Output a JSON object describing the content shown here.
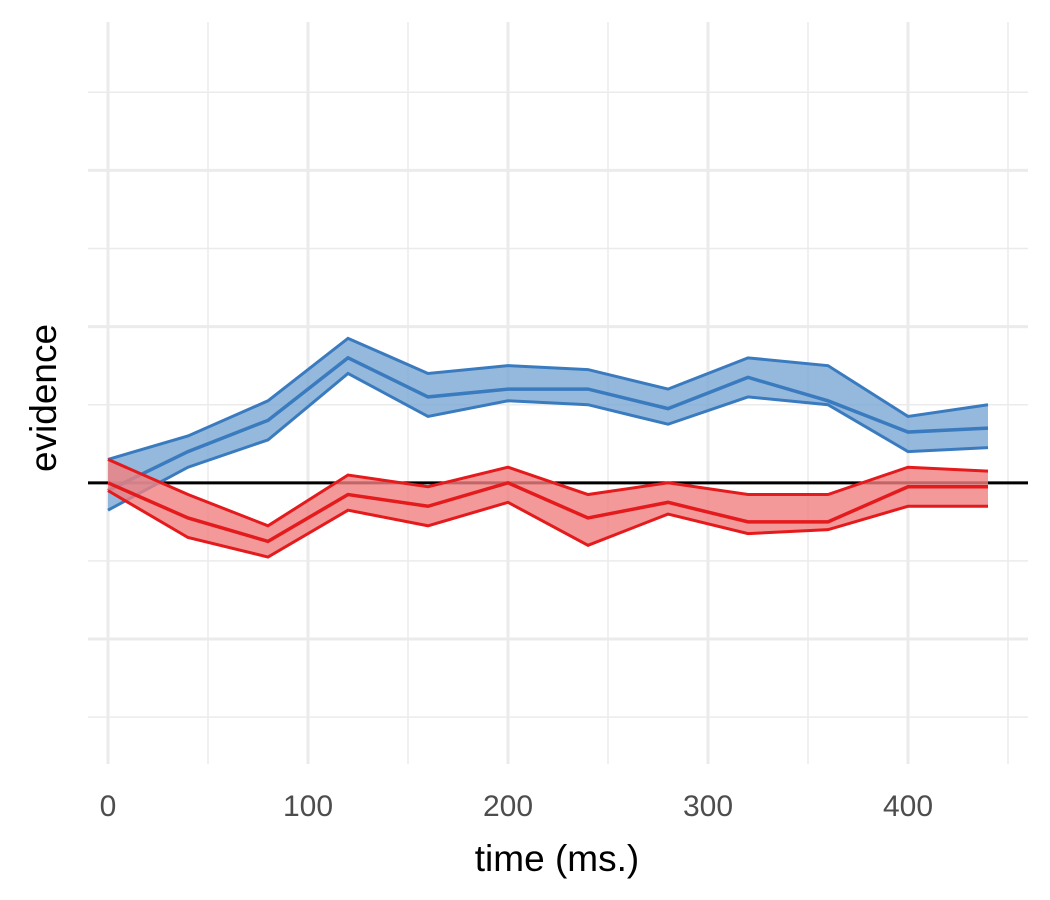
{
  "chart_data": {
    "type": "line",
    "xlabel": "time (ms.)",
    "ylabel": "evidence",
    "xlim": [
      -10,
      460
    ],
    "ylim": [
      -3.6,
      5.9
    ],
    "x_ticks": [
      0,
      100,
      200,
      300,
      400
    ],
    "y_ticks_labeled": false,
    "reference_line_y": 0,
    "grid": true,
    "legend": "none",
    "x": [
      0,
      40,
      80,
      120,
      160,
      200,
      240,
      280,
      320,
      360,
      400,
      440
    ],
    "series": [
      {
        "color": "#3a7bbf",
        "fill": "#7aa7d5",
        "mean": [
          -0.1,
          0.4,
          0.8,
          1.6,
          1.1,
          1.2,
          1.2,
          0.95,
          1.35,
          1.05,
          0.65,
          0.7
        ],
        "upper": [
          0.3,
          0.6,
          1.05,
          1.85,
          1.4,
          1.5,
          1.45,
          1.2,
          1.6,
          1.5,
          0.85,
          1.0
        ],
        "lower": [
          -0.35,
          0.2,
          0.55,
          1.4,
          0.85,
          1.05,
          1.0,
          0.75,
          1.1,
          1.0,
          0.4,
          0.45
        ]
      },
      {
        "color": "#e41a1c",
        "fill": "#f08080",
        "mean": [
          0.0,
          -0.45,
          -0.75,
          -0.15,
          -0.3,
          0.0,
          -0.45,
          -0.25,
          -0.5,
          -0.5,
          -0.05,
          -0.05
        ],
        "upper": [
          0.3,
          -0.15,
          -0.55,
          0.1,
          -0.05,
          0.2,
          -0.15,
          0.0,
          -0.15,
          -0.15,
          0.2,
          0.15
        ],
        "lower": [
          -0.1,
          -0.7,
          -0.95,
          -0.35,
          -0.55,
          -0.25,
          -0.8,
          -0.4,
          -0.65,
          -0.6,
          -0.3,
          -0.3
        ]
      }
    ]
  }
}
